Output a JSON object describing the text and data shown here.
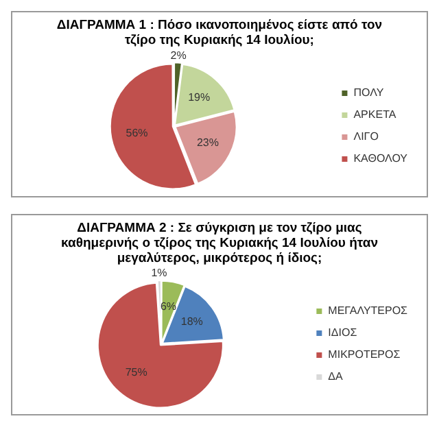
{
  "chart_data": [
    {
      "type": "pie",
      "title": "ΔΙΑΓΡΑΜΜΑ 1 : Πόσο ικανοποιημένος είστε από τον τζίρο της Κυριακής 14 Ιουλίου;",
      "categories": [
        "ΠΟΛΥ",
        "ΑΡΚΕΤΑ",
        "ΛΙΓΟ",
        "ΚΑΘΟΛΟΥ"
      ],
      "values": [
        2,
        19,
        23,
        56
      ],
      "value_labels": [
        "2%",
        "19%",
        "23%",
        "56%"
      ],
      "colors": [
        "#4f6228",
        "#c3d69b",
        "#d99694",
        "#c0504d"
      ],
      "legend": "right"
    },
    {
      "type": "pie",
      "title": "ΔΙΑΓΡΑΜΜΑ 2 : Σε σύγκριση με τον τζίρο μιας καθημερινής ο τζίρος της Κυριακής 14 Ιουλίου ήταν μεγαλύτερος, μικρότερος ή ίδιος;",
      "categories": [
        "ΜΕΓΑΛΥΤΕΡΟΣ",
        "ΙΔΙΟΣ",
        "ΜΙΚΡΟΤΕΡΟΣ",
        "ΔΑ"
      ],
      "values": [
        6,
        18,
        75,
        1
      ],
      "value_labels": [
        "6%",
        "18%",
        "75%",
        "1%"
      ],
      "colors": [
        "#9bbb59",
        "#4f81bd",
        "#c0504d",
        "#d9d9d9"
      ],
      "legend": "right"
    }
  ]
}
